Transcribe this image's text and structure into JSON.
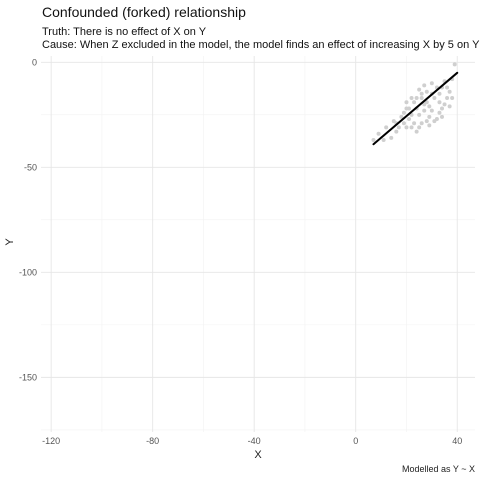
{
  "chart_data": {
    "type": "scatter",
    "title": "Confounded (forked) relationship",
    "subtitle_lines": [
      "Truth: There is no effect of X on Y",
      "Cause: When Z excluded in the model, the model finds an effect of increasing X by 5 on Y"
    ],
    "xlabel": "X",
    "ylabel": "Y",
    "caption": "Modelled as Y ~ X",
    "xlim": [
      -124,
      47
    ],
    "ylim": [
      -176,
      3
    ],
    "x_ticks": [
      -120,
      -80,
      -40,
      0,
      40
    ],
    "y_ticks": [
      0,
      -50,
      -100,
      -150
    ],
    "grid": true,
    "legend": "none",
    "colors": {
      "points": "#cfcfcf",
      "fit_line": "#000000",
      "grid": "#e6e6e6"
    },
    "points": [
      [
        25,
        -13
      ],
      [
        27,
        -11
      ],
      [
        28,
        -14
      ],
      [
        30,
        -10
      ],
      [
        32,
        -12
      ],
      [
        33,
        -15
      ],
      [
        35,
        -9
      ],
      [
        36,
        -12
      ],
      [
        38,
        -8
      ],
      [
        39,
        -1
      ],
      [
        26,
        -17
      ],
      [
        28,
        -19
      ],
      [
        29,
        -21
      ],
      [
        31,
        -17
      ],
      [
        33,
        -19
      ],
      [
        34,
        -22
      ],
      [
        36,
        -17
      ],
      [
        37,
        -14
      ],
      [
        23,
        -19
      ],
      [
        24,
        -22
      ],
      [
        22,
        -25
      ],
      [
        25,
        -25
      ],
      [
        27,
        -23
      ],
      [
        30,
        -23
      ],
      [
        32,
        -27
      ],
      [
        34,
        -26
      ],
      [
        29,
        -26
      ],
      [
        20,
        -22
      ],
      [
        21,
        -27
      ],
      [
        23,
        -29
      ],
      [
        26,
        -29
      ],
      [
        28,
        -28
      ],
      [
        31,
        -28
      ],
      [
        18,
        -26
      ],
      [
        19,
        -29
      ],
      [
        17,
        -31
      ],
      [
        20,
        -31
      ],
      [
        22,
        -31
      ],
      [
        24,
        -33
      ],
      [
        15,
        -28
      ],
      [
        16,
        -33
      ],
      [
        14,
        -36
      ],
      [
        12,
        -31
      ],
      [
        9,
        -34
      ],
      [
        7,
        -37
      ],
      [
        11,
        -37
      ],
      [
        26,
        -15
      ],
      [
        24,
        -17
      ],
      [
        35,
        -20
      ],
      [
        37,
        -21
      ],
      [
        30,
        -15
      ],
      [
        27,
        -20
      ],
      [
        21,
        -22
      ],
      [
        19,
        -24
      ],
      [
        33,
        -24
      ],
      [
        29,
        -30
      ],
      [
        25,
        -31
      ],
      [
        16,
        -29
      ],
      [
        38,
        -17
      ],
      [
        22,
        -17
      ],
      [
        20,
        -19
      ],
      [
        34,
        -12
      ]
    ],
    "fit_line": {
      "x": [
        7,
        40
      ],
      "y": [
        -39,
        -5
      ]
    }
  }
}
